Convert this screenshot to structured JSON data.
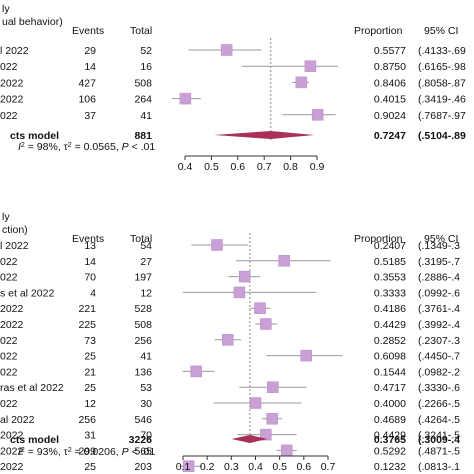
{
  "chart_data": [
    {
      "type": "forest",
      "subgroup_label_lines": [
        "ly",
        "ual behavior)"
      ],
      "columns": {
        "events": "Events",
        "total": "Total",
        "proportion": "Proportion",
        "ci": "95% CI"
      },
      "studies": [
        {
          "label": "l 2022",
          "events": "29",
          "total": "52",
          "proportion": 0.5577,
          "proportion_text": "0.5577",
          "ci_low": 0.4133,
          "ci_high": 0.69,
          "ci_text": "(.4133-.69"
        },
        {
          "label": "022",
          "events": "14",
          "total": "16",
          "proportion": 0.875,
          "proportion_text": "0.8750",
          "ci_low": 0.6165,
          "ci_high": 0.98,
          "ci_text": "(.6165-.98"
        },
        {
          "label": " 2022",
          "events": "427",
          "total": "508",
          "proportion": 0.8406,
          "proportion_text": "0.8406",
          "ci_low": 0.8058,
          "ci_high": 0.87,
          "ci_text": "(.8058-.87"
        },
        {
          "label": "2022",
          "events": "106",
          "total": "264",
          "proportion": 0.4015,
          "proportion_text": "0.4015",
          "ci_low": 0.3419,
          "ci_high": 0.46,
          "ci_text": "(.3419-.46"
        },
        {
          "label": "022",
          "events": "37",
          "total": "41",
          "proportion": 0.9024,
          "proportion_text": "0.9024",
          "ci_low": 0.7687,
          "ci_high": 0.97,
          "ci_text": "(.7687-.97"
        }
      ],
      "pooled": {
        "label": "cts model",
        "total": "881",
        "proportion": 0.7247,
        "proportion_text": "0.7247",
        "ci_low": 0.5104,
        "ci_high": 0.89,
        "ci_text": "(.5104-.89"
      },
      "heterogeneity": {
        "i2": "98%",
        "tau2": "0.0565",
        "p": "< .01"
      },
      "axis": {
        "min": 0.4,
        "max": 0.9,
        "ticks": [
          "0.4",
          "0.5",
          "0.6",
          "0.7",
          "0.8",
          "0.9"
        ]
      },
      "axis_label_values": [
        0.4,
        0.5,
        0.6,
        0.7,
        0.8,
        0.9
      ],
      "reference_line": 0.7247,
      "colors": {
        "square": "#c9a0d6",
        "diamond": "#a8305a",
        "line": "#999999"
      }
    },
    {
      "type": "forest",
      "subgroup_label_lines": [
        "ly",
        "ction)"
      ],
      "columns": {
        "events": "Events",
        "total": "Total",
        "proportion": "Proportion",
        "ci": "95% CI"
      },
      "studies": [
        {
          "label": "l 2022",
          "events": "13",
          "total": "54",
          "proportion": 0.2407,
          "proportion_text": "0.2407",
          "ci_low": 0.1349,
          "ci_high": 0.37,
          "ci_text": "(.1349-.3"
        },
        {
          "label": "022",
          "events": "14",
          "total": "27",
          "proportion": 0.5185,
          "proportion_text": "0.5185",
          "ci_low": 0.3195,
          "ci_high": 0.71,
          "ci_text": "(.3195-.7"
        },
        {
          "label": "022",
          "events": "70",
          "total": "197",
          "proportion": 0.3553,
          "proportion_text": "0.3553",
          "ci_low": 0.2886,
          "ci_high": 0.42,
          "ci_text": "(.2886-.4"
        },
        {
          "label": "s et al 2022",
          "events": "4",
          "total": "12",
          "proportion": 0.3333,
          "proportion_text": "0.3333",
          "ci_low": 0.0992,
          "ci_high": 0.65,
          "ci_text": "(.0992-.6"
        },
        {
          "label": " 2022",
          "events": "221",
          "total": "528",
          "proportion": 0.4186,
          "proportion_text": "0.4186",
          "ci_low": 0.3761,
          "ci_high": 0.46,
          "ci_text": "(.3761-.4"
        },
        {
          "label": " 2022",
          "events": "225",
          "total": "508",
          "proportion": 0.4429,
          "proportion_text": "0.4429",
          "ci_low": 0.3992,
          "ci_high": 0.49,
          "ci_text": "(.3992-.4"
        },
        {
          "label": "022",
          "events": "73",
          "total": "256",
          "proportion": 0.2852,
          "proportion_text": "0.2852",
          "ci_low": 0.2307,
          "ci_high": 0.34,
          "ci_text": "(.2307-.3"
        },
        {
          "label": "022",
          "events": "25",
          "total": "41",
          "proportion": 0.6098,
          "proportion_text": "0.6098",
          "ci_low": 0.445,
          "ci_high": 0.76,
          "ci_text": "(.4450-.7"
        },
        {
          "label": "022",
          "events": "21",
          "total": "136",
          "proportion": 0.1544,
          "proportion_text": "0.1544",
          "ci_low": 0.0982,
          "ci_high": 0.23,
          "ci_text": "(.0982-.2"
        },
        {
          "label": "ras et al 2022",
          "events": "25",
          "total": "53",
          "proportion": 0.4717,
          "proportion_text": "0.4717",
          "ci_low": 0.333,
          "ci_high": 0.61,
          "ci_text": "(.3330-.6"
        },
        {
          "label": "022",
          "events": "12",
          "total": "30",
          "proportion": 0.4,
          "proportion_text": "0.4000",
          "ci_low": 0.2266,
          "ci_high": 0.59,
          "ci_text": "(.2266-.5"
        },
        {
          "label": "al 2022",
          "events": "256",
          "total": "546",
          "proportion": 0.4689,
          "proportion_text": "0.4689",
          "ci_low": 0.4264,
          "ci_high": 0.51,
          "ci_text": "(.4264-.5"
        },
        {
          "label": "2022",
          "events": "31",
          "total": "70",
          "proportion": 0.4429,
          "proportion_text": "0.4429",
          "ci_low": 0.3241,
          "ci_high": 0.57,
          "ci_text": "(.3241-.5"
        },
        {
          "label": "2022",
          "events": "299",
          "total": "565",
          "proportion": 0.5292,
          "proportion_text": "0.5292",
          "ci_low": 0.4871,
          "ci_high": 0.57,
          "ci_text": "(.4871-.5"
        },
        {
          "label": " 2022",
          "events": "25",
          "total": "203",
          "proportion": 0.1232,
          "proportion_text": "0.1232",
          "ci_low": 0.0813,
          "ci_high": 0.18,
          "ci_text": "(.0813-.1"
        }
      ],
      "pooled": {
        "label": "cts model",
        "total": "3226",
        "proportion": 0.3765,
        "proportion_text": "0.3765",
        "ci_low": 0.3009,
        "ci_high": 0.45,
        "ci_text": "(.3009-.4"
      },
      "heterogeneity": {
        "i2": "93%",
        "tau2": "0.0206",
        "p": "< .01"
      },
      "axis": {
        "min": 0.1,
        "max": 0.7,
        "ticks": [
          "0.1",
          "0.2",
          "0.3",
          "0.4",
          "0.5",
          "0.6",
          "0.7"
        ]
      },
      "axis_label_values": [
        0.1,
        0.2,
        0.3,
        0.4,
        0.5,
        0.6,
        0.7
      ],
      "reference_line": 0.3765,
      "colors": {
        "square": "#c9a0d6",
        "diamond": "#a8305a",
        "line": "#999999"
      }
    }
  ]
}
